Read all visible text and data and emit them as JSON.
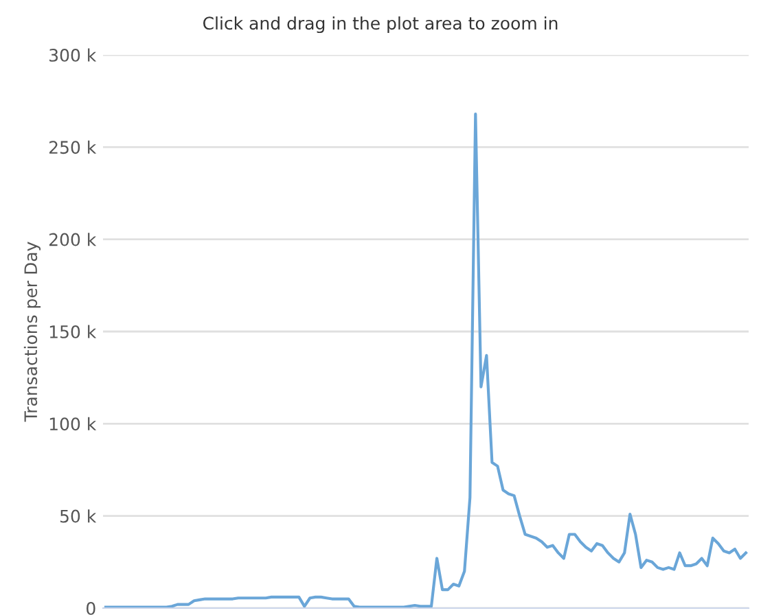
{
  "chart_data": {
    "type": "line",
    "subtitle": "Click and drag in the plot area to zoom in",
    "ylabel": "Transactions per Day",
    "categories": [
      null,
      null,
      null,
      null,
      null,
      null,
      null,
      null,
      null,
      null,
      null,
      null,
      null,
      null,
      null,
      null,
      null,
      null,
      null,
      null,
      null,
      null,
      null,
      null,
      null,
      null,
      null,
      null,
      null,
      null,
      null,
      null,
      null,
      null,
      null,
      null,
      null,
      null,
      null,
      null,
      null,
      null,
      null,
      null,
      null,
      null,
      null,
      null,
      null,
      null,
      null,
      null,
      null,
      null,
      null,
      null,
      null,
      null,
      null,
      null,
      null,
      null,
      null,
      null,
      null,
      null,
      null,
      null,
      null,
      null,
      null,
      null,
      null,
      null,
      null,
      null,
      null,
      null,
      null,
      null,
      null,
      null,
      null,
      null,
      null,
      null,
      null,
      null,
      null,
      null,
      null,
      null,
      null,
      null,
      null,
      null,
      null,
      null,
      null,
      null,
      null,
      null,
      null,
      null,
      null,
      null,
      null,
      null,
      null,
      null,
      null,
      null,
      null,
      null,
      null,
      null,
      null
    ],
    "series": [
      {
        "color": "#6aa6d8",
        "values": [
          0.5,
          0.5,
          0.5,
          0.5,
          0.5,
          0.5,
          0.5,
          0.5,
          0.5,
          0.5,
          0.5,
          0.5,
          1,
          2,
          2,
          2,
          4,
          4.5,
          5,
          5,
          5,
          5,
          5,
          5,
          5.5,
          5.5,
          5.5,
          5.5,
          5.5,
          5.5,
          6,
          6,
          6,
          6,
          6,
          6,
          1,
          5.5,
          6,
          6,
          5.5,
          5,
          5,
          5,
          5,
          1,
          0.5,
          0.5,
          0.5,
          0.5,
          0.5,
          0.5,
          0.5,
          0.5,
          0.5,
          1,
          1.5,
          1,
          1,
          1,
          27,
          10,
          10,
          13,
          12,
          20,
          60,
          268,
          120,
          137,
          79,
          77,
          64,
          62,
          61,
          50,
          40,
          39,
          38,
          36,
          33,
          34,
          30,
          27,
          40,
          40,
          36,
          33,
          31,
          35,
          34,
          30,
          27,
          25,
          30,
          51,
          40,
          22,
          26,
          25,
          22,
          21,
          22,
          21,
          30,
          23,
          23,
          24,
          27,
          23,
          38,
          35,
          31,
          30,
          32,
          27,
          30
        ]
      }
    ],
    "ylim": [
      0,
      300
    ],
    "yticks": [
      {
        "value": 0,
        "label": "0"
      },
      {
        "value": 50,
        "label": "50 k"
      },
      {
        "value": 100,
        "label": "100 k"
      },
      {
        "value": 150,
        "label": "150 k"
      },
      {
        "value": 200,
        "label": "200 k"
      },
      {
        "value": 250,
        "label": "250 k"
      },
      {
        "value": 300,
        "label": "300 k"
      }
    ],
    "grid": "y",
    "marker": "none",
    "line_style": "solid"
  }
}
